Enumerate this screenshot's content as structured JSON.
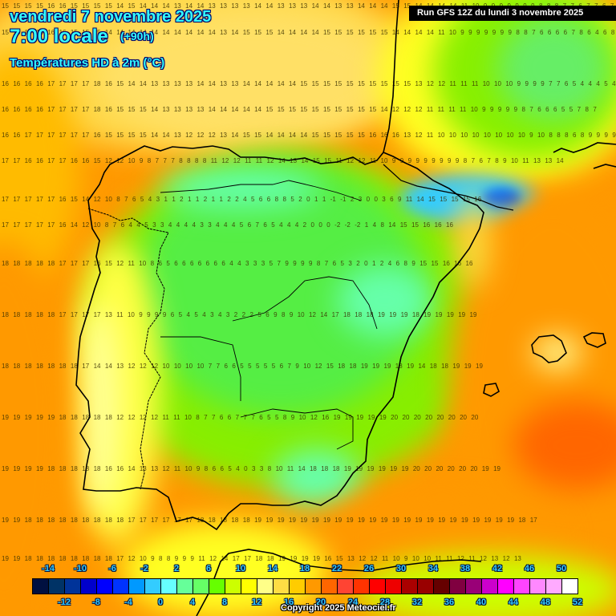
{
  "header": {
    "date": "vendredi 7 novembre 2025",
    "time": "7:00 locale",
    "offset": "(+90h)",
    "parameter": "Températures HD à 2m (°C)"
  },
  "run_label": "Run GFS 12Z du lundi 3 novembre 2025",
  "copyright": "Copyright 2025 Meteociel.fr",
  "legend": {
    "top_ticks": [
      "-14",
      "-10",
      "-6",
      "-2",
      "2",
      "6",
      "10",
      "14",
      "18",
      "22",
      "26",
      "30",
      "34",
      "38",
      "42",
      "46",
      "50"
    ],
    "bottom_ticks": [
      "-12",
      "-8",
      "-4",
      "0",
      "4",
      "8",
      "12",
      "16",
      "20",
      "24",
      "28",
      "32",
      "36",
      "40",
      "44",
      "48",
      "52"
    ],
    "colors": [
      "#001040",
      "#003366",
      "#003399",
      "#0000cc",
      "#0000ff",
      "#0033ff",
      "#0099ff",
      "#33ccff",
      "#66ffff",
      "#66ff99",
      "#66ff66",
      "#66ff00",
      "#ccff00",
      "#ffff00",
      "#ffff88",
      "#ffdd44",
      "#ffcc00",
      "#ff9900",
      "#ff6600",
      "#ff4433",
      "#ff3300",
      "#ff0000",
      "#ee0000",
      "#aa0000",
      "#990000",
      "#660000",
      "#800040",
      "#990077",
      "#cc00cc",
      "#ff00ff",
      "#ff44ff",
      "#ff88ff",
      "#ffaaff",
      "#ffffff"
    ]
  },
  "map": {
    "region": "Péninsule Ibérique",
    "sample_values": {
      "atlantic_west": "18 18 18 19 19 19",
      "portugal_coast": "13 12 11 10 9",
      "meseta_north": "4 5 3 3 4 4 4 4 3 3 4",
      "pyrenees": "-1 -1 -2 -2 0 0 3",
      "mediterranean": "19 19 20 20 20 20",
      "bay_of_biscay": "15 15 15 15 15 14 14",
      "france_south": "9 9 8 7 6 5 4 5",
      "andalusia_sierra": "4 0 3 3 8",
      "balearics": "12 13 14"
    }
  }
}
